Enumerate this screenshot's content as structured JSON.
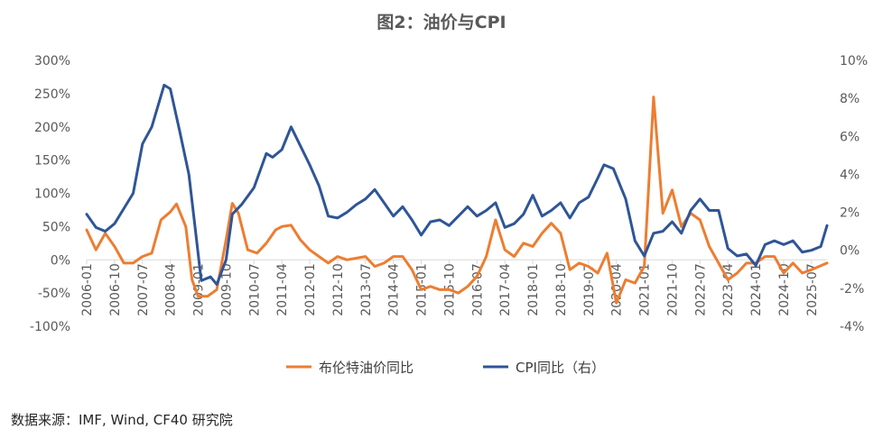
{
  "title": "图2：油价与CPI",
  "source": "数据来源：IMF, Wind, CF40 研究院",
  "colors": {
    "oil": "#ED7D31",
    "cpi": "#2F5597",
    "axis": "#D9D9D9",
    "text": "#595959"
  },
  "chart_data": {
    "type": "line",
    "title": "图2：油价与CPI",
    "legend_position": "bottom",
    "grid": false,
    "y_left": {
      "ticks": [
        "300%",
        "250%",
        "200%",
        "150%",
        "100%",
        "50%",
        "0%",
        "-50%",
        "-100%"
      ],
      "range": [
        -100,
        300
      ],
      "unit": "%"
    },
    "y_right": {
      "ticks": [
        "10%",
        "8%",
        "6%",
        "4%",
        "2%",
        "0%",
        "-2%",
        "-4%"
      ],
      "range": [
        -4,
        10
      ],
      "unit": "%"
    },
    "x_tick_labels": [
      "2006-01",
      "2006-10",
      "2007-07",
      "2008-04",
      "2009-01",
      "2009-10",
      "2010-07",
      "2011-04",
      "2012-01",
      "2012-10",
      "2013-07",
      "2014-04",
      "2015-01",
      "2015-10",
      "2016-07",
      "2017-04",
      "2018-01",
      "2018-10",
      "2019-07",
      "2020-04",
      "2021-01",
      "2021-10",
      "2022-07",
      "2023-04",
      "2024-01",
      "2024-10",
      "2025-07"
    ],
    "x_range": [
      "2006-01",
      "2025-12"
    ],
    "series": [
      {
        "name": "布伦特油价同比",
        "axis": "left",
        "color": "#ED7D31",
        "points": [
          [
            "2006-01",
            45
          ],
          [
            "2006-04",
            15
          ],
          [
            "2006-07",
            40
          ],
          [
            "2006-10",
            20
          ],
          [
            "2007-01",
            -5
          ],
          [
            "2007-04",
            -5
          ],
          [
            "2007-07",
            5
          ],
          [
            "2007-10",
            10
          ],
          [
            "2008-01",
            60
          ],
          [
            "2008-04",
            72
          ],
          [
            "2008-06",
            84
          ],
          [
            "2008-09",
            50
          ],
          [
            "2008-11",
            -30
          ],
          [
            "2009-01",
            -55
          ],
          [
            "2009-04",
            -55
          ],
          [
            "2009-07",
            -45
          ],
          [
            "2009-10",
            30
          ],
          [
            "2009-12",
            85
          ],
          [
            "2010-02",
            70
          ],
          [
            "2010-05",
            15
          ],
          [
            "2010-08",
            10
          ],
          [
            "2010-11",
            25
          ],
          [
            "2011-02",
            45
          ],
          [
            "2011-04",
            50
          ],
          [
            "2011-07",
            52
          ],
          [
            "2011-10",
            30
          ],
          [
            "2012-01",
            15
          ],
          [
            "2012-04",
            5
          ],
          [
            "2012-07",
            -5
          ],
          [
            "2012-10",
            5
          ],
          [
            "2013-01",
            0
          ],
          [
            "2013-07",
            5
          ],
          [
            "2013-10",
            -10
          ],
          [
            "2014-01",
            -5
          ],
          [
            "2014-04",
            5
          ],
          [
            "2014-07",
            5
          ],
          [
            "2014-10",
            -15
          ],
          [
            "2015-01",
            -45
          ],
          [
            "2015-04",
            -40
          ],
          [
            "2015-07",
            -45
          ],
          [
            "2015-10",
            -45
          ],
          [
            "2016-01",
            -50
          ],
          [
            "2016-04",
            -40
          ],
          [
            "2016-07",
            -25
          ],
          [
            "2016-10",
            5
          ],
          [
            "2017-01",
            60
          ],
          [
            "2017-04",
            15
          ],
          [
            "2017-07",
            5
          ],
          [
            "2017-10",
            25
          ],
          [
            "2018-01",
            20
          ],
          [
            "2018-04",
            40
          ],
          [
            "2018-07",
            55
          ],
          [
            "2018-10",
            40
          ],
          [
            "2019-01",
            -15
          ],
          [
            "2019-04",
            -5
          ],
          [
            "2019-07",
            -10
          ],
          [
            "2019-10",
            -20
          ],
          [
            "2020-01",
            10
          ],
          [
            "2020-04",
            -65
          ],
          [
            "2020-07",
            -30
          ],
          [
            "2020-10",
            -35
          ],
          [
            "2021-01",
            -10
          ],
          [
            "2021-04",
            245
          ],
          [
            "2021-07",
            70
          ],
          [
            "2021-10",
            105
          ],
          [
            "2022-01",
            50
          ],
          [
            "2022-04",
            70
          ],
          [
            "2022-07",
            60
          ],
          [
            "2022-10",
            20
          ],
          [
            "2023-01",
            -5
          ],
          [
            "2023-04",
            -30
          ],
          [
            "2023-07",
            -20
          ],
          [
            "2023-10",
            -5
          ],
          [
            "2024-01",
            -5
          ],
          [
            "2024-04",
            5
          ],
          [
            "2024-07",
            5
          ],
          [
            "2024-10",
            -20
          ],
          [
            "2025-01",
            -5
          ],
          [
            "2025-04",
            -20
          ],
          [
            "2025-07",
            -15
          ],
          [
            "2025-12",
            -5
          ]
        ]
      },
      {
        "name": "CPI同比（右）",
        "axis": "right",
        "color": "#2F5597",
        "points": [
          [
            "2006-01",
            1.9
          ],
          [
            "2006-04",
            1.2
          ],
          [
            "2006-07",
            1.0
          ],
          [
            "2006-10",
            1.4
          ],
          [
            "2007-01",
            2.2
          ],
          [
            "2007-04",
            3.0
          ],
          [
            "2007-07",
            5.6
          ],
          [
            "2007-10",
            6.5
          ],
          [
            "2008-02",
            8.7
          ],
          [
            "2008-04",
            8.5
          ],
          [
            "2008-07",
            6.3
          ],
          [
            "2008-10",
            4.0
          ],
          [
            "2008-12",
            1.2
          ],
          [
            "2009-02",
            -1.6
          ],
          [
            "2009-05",
            -1.4
          ],
          [
            "2009-07",
            -1.8
          ],
          [
            "2009-10",
            -0.5
          ],
          [
            "2009-12",
            1.9
          ],
          [
            "2010-03",
            2.4
          ],
          [
            "2010-07",
            3.3
          ],
          [
            "2010-11",
            5.1
          ],
          [
            "2011-01",
            4.9
          ],
          [
            "2011-04",
            5.3
          ],
          [
            "2011-07",
            6.5
          ],
          [
            "2011-10",
            5.5
          ],
          [
            "2012-01",
            4.5
          ],
          [
            "2012-04",
            3.4
          ],
          [
            "2012-07",
            1.8
          ],
          [
            "2012-10",
            1.7
          ],
          [
            "2013-01",
            2.0
          ],
          [
            "2013-04",
            2.4
          ],
          [
            "2013-07",
            2.7
          ],
          [
            "2013-10",
            3.2
          ],
          [
            "2014-01",
            2.5
          ],
          [
            "2014-04",
            1.8
          ],
          [
            "2014-07",
            2.3
          ],
          [
            "2014-10",
            1.6
          ],
          [
            "2015-01",
            0.8
          ],
          [
            "2015-04",
            1.5
          ],
          [
            "2015-07",
            1.6
          ],
          [
            "2015-10",
            1.3
          ],
          [
            "2016-01",
            1.8
          ],
          [
            "2016-04",
            2.3
          ],
          [
            "2016-07",
            1.8
          ],
          [
            "2016-10",
            2.1
          ],
          [
            "2017-01",
            2.5
          ],
          [
            "2017-04",
            1.2
          ],
          [
            "2017-07",
            1.4
          ],
          [
            "2017-10",
            1.9
          ],
          [
            "2018-01",
            2.9
          ],
          [
            "2018-04",
            1.8
          ],
          [
            "2018-07",
            2.1
          ],
          [
            "2018-10",
            2.5
          ],
          [
            "2019-01",
            1.7
          ],
          [
            "2019-04",
            2.5
          ],
          [
            "2019-07",
            2.8
          ],
          [
            "2019-10",
            3.8
          ],
          [
            "2019-12",
            4.5
          ],
          [
            "2020-03",
            4.3
          ],
          [
            "2020-07",
            2.7
          ],
          [
            "2020-10",
            0.5
          ],
          [
            "2021-01",
            -0.3
          ],
          [
            "2021-04",
            0.9
          ],
          [
            "2021-07",
            1.0
          ],
          [
            "2021-10",
            1.5
          ],
          [
            "2022-01",
            0.9
          ],
          [
            "2022-04",
            2.1
          ],
          [
            "2022-07",
            2.7
          ],
          [
            "2022-10",
            2.1
          ],
          [
            "2023-01",
            2.1
          ],
          [
            "2023-04",
            0.1
          ],
          [
            "2023-07",
            -0.3
          ],
          [
            "2023-10",
            -0.2
          ],
          [
            "2024-01",
            -0.8
          ],
          [
            "2024-04",
            0.3
          ],
          [
            "2024-07",
            0.5
          ],
          [
            "2024-10",
            0.3
          ],
          [
            "2025-01",
            0.5
          ],
          [
            "2025-04",
            -0.1
          ],
          [
            "2025-07",
            0.0
          ],
          [
            "2025-10",
            0.2
          ],
          [
            "2025-12",
            1.3
          ]
        ]
      }
    ]
  }
}
